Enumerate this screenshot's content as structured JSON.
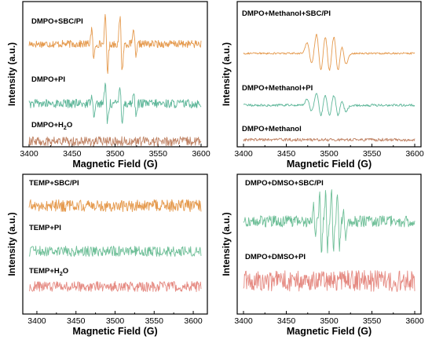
{
  "colors": {
    "orange": "#e59a4e",
    "green": "#5fb79a",
    "brown": "#c08466",
    "teal": "#6fbf98",
    "pink": "#e58a82",
    "axis": "#000000"
  },
  "chart_data": [
    {
      "id": "a",
      "type": "line",
      "xlabel": "Magnetic Field (G)",
      "ylabel": "Intensity (a.u.)",
      "xlim": [
        3400,
        3600
      ],
      "xticks": [
        "3400",
        "3450",
        "3500",
        "3550",
        "3600"
      ],
      "series": [
        {
          "name": "DMPO+SBC/PI",
          "color": "#e59a4e",
          "lines": [
            3474,
            3490,
            3507,
            3523
          ],
          "amp": 1.0,
          "noise": 0.12
        },
        {
          "name": "DMPO+PI",
          "color": "#5fb79a",
          "lines": [
            3474,
            3490,
            3507,
            3523
          ],
          "amp": 0.7,
          "noise": 0.14
        },
        {
          "name": "DMPO+H₂O",
          "color": "#c08466",
          "lines": [],
          "amp": 0.0,
          "noise": 0.15
        }
      ]
    },
    {
      "id": "b",
      "type": "line",
      "xlabel": "Magnetic Field (G)",
      "ylabel": "Intensity (a.u.)",
      "xlim": [
        3400,
        3600
      ],
      "xticks": [
        "3400",
        "3450",
        "3500",
        "3550",
        "3600"
      ],
      "series": [
        {
          "name": "DMPO+Methanol+SBC/PI",
          "color": "#e59a4e",
          "lines": [
            3477,
            3488,
            3498,
            3508,
            3517
          ],
          "amp": 0.75,
          "noise": 0.03
        },
        {
          "name": "DMPO+Methanol+PI",
          "color": "#5fb79a",
          "lines": [
            3477,
            3488,
            3498,
            3508,
            3517
          ],
          "amp": 0.45,
          "noise": 0.04
        },
        {
          "name": "DMPO+Methanol",
          "color": "#c08466",
          "lines": [],
          "amp": 0.0,
          "noise": 0.05
        }
      ]
    },
    {
      "id": "c",
      "type": "line",
      "xlabel": "Magnetic Field (G)",
      "ylabel": "Intensity (a.u.)",
      "xlim": [
        3390,
        3610
      ],
      "xticks": [
        "3400",
        "3450",
        "3500",
        "3550",
        "3600"
      ],
      "series": [
        {
          "name": "TEMP+SBC/PI",
          "color": "#e59a4e",
          "lines": [],
          "amp": 0.0,
          "noise": 0.35
        },
        {
          "name": "TEMP+PI",
          "color": "#6fbf98",
          "lines": [],
          "amp": 0.0,
          "noise": 0.3
        },
        {
          "name": "TEMP+H₂O",
          "color": "#e58a82",
          "lines": [],
          "amp": 0.0,
          "noise": 0.3
        }
      ]
    },
    {
      "id": "d",
      "type": "line",
      "xlabel": "Magnetic Field (G)",
      "ylabel": "Intensity (a.u.)",
      "xlim": [
        3400,
        3600
      ],
      "xticks": [
        "3400",
        "3450",
        "3500",
        "3550",
        "3600"
      ],
      "series": [
        {
          "name": "DMPO+DMSO+SBC/PI",
          "color": "#6fbf98",
          "lines": [
            3483,
            3490,
            3497,
            3504,
            3511,
            3518
          ],
          "amp": 0.9,
          "noise": 0.16
        },
        {
          "name": "DMPO+DMSO+PI",
          "color": "#e58a82",
          "lines": [],
          "amp": 0.0,
          "noise": 0.3
        }
      ]
    }
  ]
}
